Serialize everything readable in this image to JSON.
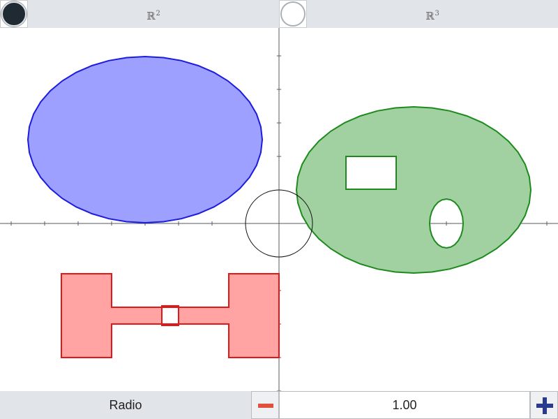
{
  "tabs": [
    {
      "label": "ℝ",
      "superscript": "2",
      "active": true
    },
    {
      "label": "ℝ",
      "superscript": "3",
      "active": false
    }
  ],
  "parameter": {
    "label": "Radio",
    "value": "1.00",
    "decrement_icon": "minus-icon",
    "increment_icon": "plus-icon"
  },
  "colors": {
    "blue_fill": "#9da0ff",
    "blue_stroke": "#1c1cdc",
    "green_fill": "#a1d1a1",
    "green_stroke": "#1e8a1e",
    "red_fill": "#ffa3a3",
    "red_stroke": "#dd1a1a",
    "axis": "#555b61"
  }
}
